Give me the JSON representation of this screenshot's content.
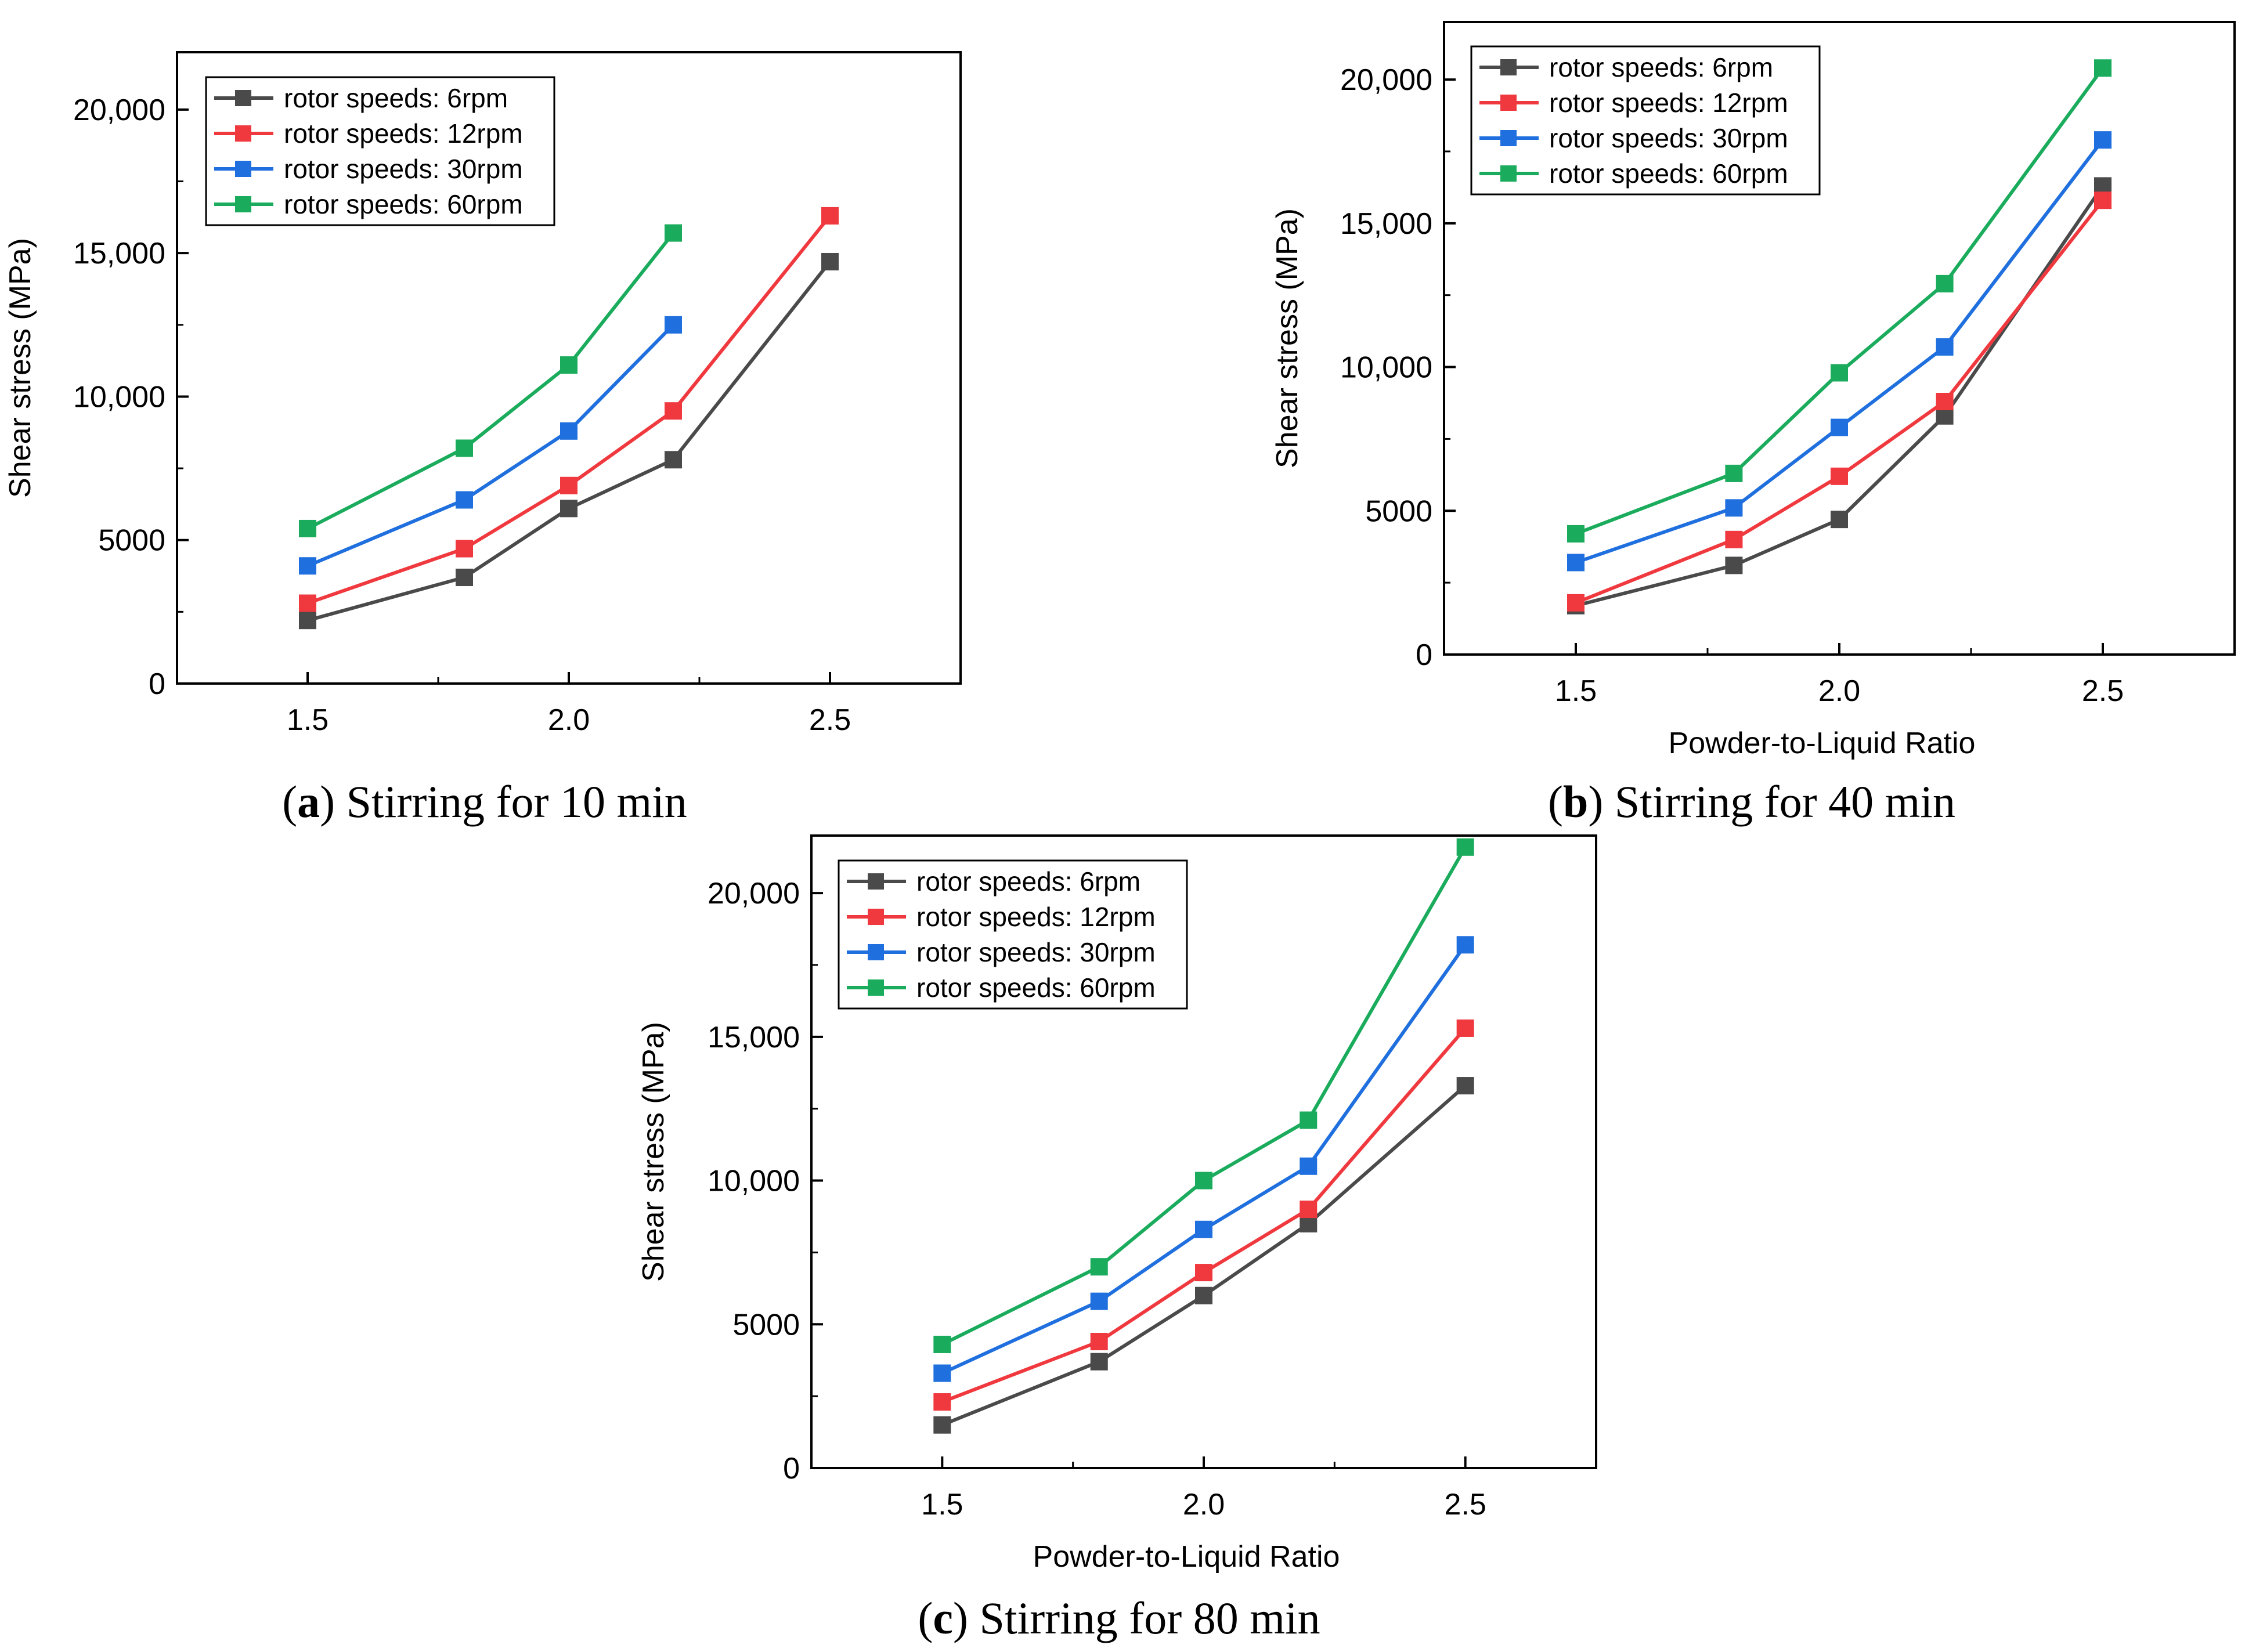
{
  "chart_data": [
    {
      "type": "line",
      "panel": "a",
      "caption_letter": "a",
      "caption_text": "Stirring for 10 min",
      "xlabel": "",
      "ylabel": "Shear stress (MPa)",
      "xlim": [
        1.25,
        2.75
      ],
      "ylim": [
        0,
        22000
      ],
      "x_ticks": [
        "1.5",
        "2.0",
        "2.5"
      ],
      "y_ticks": [
        "0",
        "5000",
        "10,000",
        "15,000",
        "20,000"
      ],
      "legend_position": "top-left",
      "series": [
        {
          "name": "rotor speeds: 6rpm",
          "color": "#4a4a4a",
          "x": [
            1.5,
            1.8,
            2.0,
            2.2,
            2.5
          ],
          "values": [
            2200,
            3700,
            6100,
            7800,
            14700
          ]
        },
        {
          "name": "rotor speeds: 12rpm",
          "color": "#f0393e",
          "x": [
            1.5,
            1.8,
            2.0,
            2.2,
            2.5
          ],
          "values": [
            2800,
            4700,
            6900,
            9500,
            16300
          ]
        },
        {
          "name": "rotor speeds: 30rpm",
          "color": "#1f6fde",
          "x": [
            1.5,
            1.8,
            2.0,
            2.2
          ],
          "values": [
            4100,
            6400,
            8800,
            12500
          ]
        },
        {
          "name": "rotor speeds: 60rpm",
          "color": "#1aac5c",
          "x": [
            1.5,
            1.8,
            2.0,
            2.2
          ],
          "values": [
            5400,
            8200,
            11100,
            15700
          ]
        }
      ]
    },
    {
      "type": "line",
      "panel": "b",
      "caption_letter": "b",
      "caption_text": "Stirring for 40 min",
      "xlabel": "Powder-to-Liquid Ratio",
      "ylabel": "Shear stress (MPa)",
      "xlim": [
        1.25,
        2.75
      ],
      "ylim": [
        0,
        22000
      ],
      "x_ticks": [
        "1.5",
        "2.0",
        "2.5"
      ],
      "y_ticks": [
        "0",
        "5000",
        "10,000",
        "15,000",
        "20,000"
      ],
      "legend_position": "top-left",
      "series": [
        {
          "name": "rotor speeds: 6rpm",
          "color": "#4a4a4a",
          "x": [
            1.5,
            1.8,
            2.0,
            2.2,
            2.5
          ],
          "values": [
            1700,
            3100,
            4700,
            8300,
            16300
          ]
        },
        {
          "name": "rotor speeds: 12rpm",
          "color": "#f0393e",
          "x": [
            1.5,
            1.8,
            2.0,
            2.2,
            2.5
          ],
          "values": [
            1800,
            4000,
            6200,
            8800,
            15800
          ]
        },
        {
          "name": "rotor speeds: 30rpm",
          "color": "#1f6fde",
          "x": [
            1.5,
            1.8,
            2.0,
            2.2,
            2.5
          ],
          "values": [
            3200,
            5100,
            7900,
            10700,
            17900
          ]
        },
        {
          "name": "rotor speeds: 60rpm",
          "color": "#1aac5c",
          "x": [
            1.5,
            1.8,
            2.0,
            2.2,
            2.5
          ],
          "values": [
            4200,
            6300,
            9800,
            12900,
            20400
          ]
        }
      ]
    },
    {
      "type": "line",
      "panel": "c",
      "caption_letter": "c",
      "caption_text": "Stirring for 80 min",
      "xlabel": "Powder-to-Liquid Ratio",
      "ylabel": "Shear stress (MPa)",
      "xlim": [
        1.25,
        2.75
      ],
      "ylim": [
        0,
        22000
      ],
      "x_ticks": [
        "1.5",
        "2.0",
        "2.5"
      ],
      "y_ticks": [
        "0",
        "5000",
        "10,000",
        "15,000",
        "20,000"
      ],
      "legend_position": "top-left",
      "series": [
        {
          "name": "rotor speeds: 6rpm",
          "color": "#4a4a4a",
          "x": [
            1.5,
            1.8,
            2.0,
            2.2,
            2.5
          ],
          "values": [
            1500,
            3700,
            6000,
            8500,
            13300
          ]
        },
        {
          "name": "rotor speeds: 12rpm",
          "color": "#f0393e",
          "x": [
            1.5,
            1.8,
            2.0,
            2.2,
            2.5
          ],
          "values": [
            2300,
            4400,
            6800,
            9000,
            15300
          ]
        },
        {
          "name": "rotor speeds: 30rpm",
          "color": "#1f6fde",
          "x": [
            1.5,
            1.8,
            2.0,
            2.2,
            2.5
          ],
          "values": [
            3300,
            5800,
            8300,
            10500,
            18200
          ]
        },
        {
          "name": "rotor speeds: 60rpm",
          "color": "#1aac5c",
          "x": [
            1.5,
            1.8,
            2.0,
            2.2,
            2.5
          ],
          "values": [
            4300,
            7000,
            10000,
            12100,
            21600
          ]
        }
      ]
    }
  ]
}
